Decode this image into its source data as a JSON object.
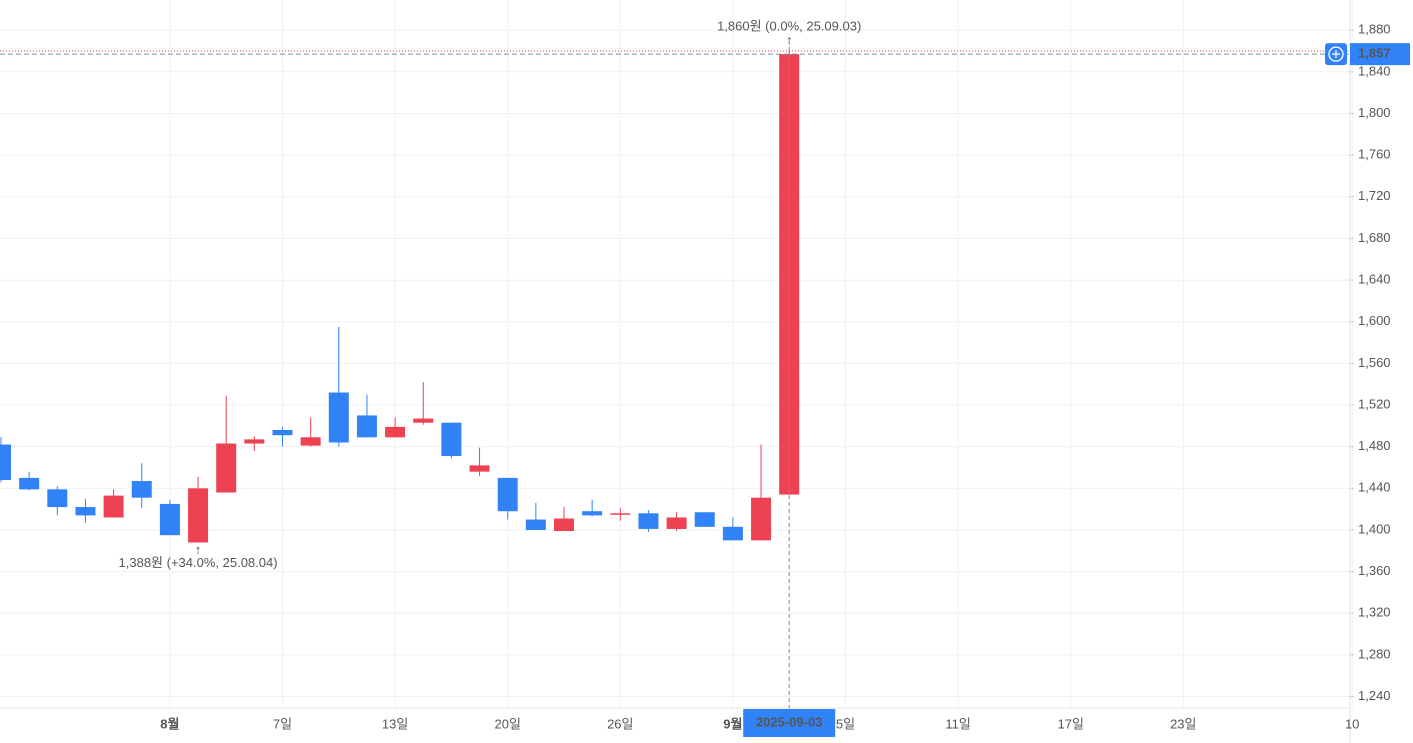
{
  "chart_data": {
    "type": "candlestick",
    "categories": [
      null,
      null,
      null,
      null,
      null,
      null,
      "8월",
      null,
      null,
      null,
      "7일",
      null,
      null,
      null,
      "13일",
      null,
      null,
      null,
      "20일",
      null,
      null,
      null,
      "26일",
      null,
      null,
      null,
      "9월",
      null,
      null,
      null,
      "5일",
      null,
      null,
      null,
      "11일",
      null,
      null,
      null,
      "17일",
      null,
      null,
      null,
      "23일",
      null,
      null,
      null,
      null,
      null,
      "10"
    ],
    "open": [
      1482,
      1450,
      1439,
      1422,
      1412,
      1447,
      1425,
      1388,
      1436,
      1483,
      1496,
      1481,
      1532,
      1510,
      1489,
      1503,
      1503,
      1456,
      1450,
      1410,
      1399,
      1418,
      1416,
      1416,
      1401,
      1417,
      1403,
      1390,
      1434,
      null,
      null,
      null,
      null,
      null,
      null,
      null,
      null,
      null,
      null,
      null,
      null,
      null,
      null,
      null,
      null,
      null,
      null,
      null,
      null
    ],
    "high": [
      1489,
      1456,
      1442,
      1430,
      1439,
      1464,
      1429,
      1451,
      1529,
      1490,
      1499,
      1508,
      1595,
      1530,
      1508,
      1542,
      1503,
      1479,
      1450,
      1426,
      1422,
      1429,
      1421,
      1419,
      1417,
      1417,
      1412,
      1482,
      1860,
      null,
      null,
      null,
      null,
      null,
      null,
      null,
      null,
      null,
      null,
      null,
      null,
      null,
      null,
      null,
      null,
      null,
      null,
      null,
      null
    ],
    "low": [
      1446,
      1438,
      1414,
      1407,
      1412,
      1421,
      1395,
      1388,
      1436,
      1476,
      1480,
      1480,
      1480,
      1489,
      1489,
      1501,
      1469,
      1452,
      1410,
      1400,
      1399,
      1413,
      1409,
      1398,
      1399,
      1403,
      1390,
      1390,
      1434,
      null,
      null,
      null,
      null,
      null,
      null,
      null,
      null,
      null,
      null,
      null,
      null,
      null,
      null,
      null,
      null,
      null,
      null,
      null,
      null
    ],
    "close": [
      1448,
      1439,
      1422,
      1414,
      1433,
      1431,
      1395,
      1440,
      1483,
      1487,
      1491,
      1489,
      1484,
      1489,
      1499,
      1507,
      1471,
      1462,
      1418,
      1400,
      1411,
      1414,
      1416,
      1401,
      1412,
      1403,
      1390,
      1431,
      1857,
      null,
      null,
      null,
      null,
      null,
      null,
      null,
      null,
      null,
      null,
      null,
      null,
      null,
      null,
      null,
      null,
      null,
      null,
      null,
      null
    ],
    "up_color": "#ee4152",
    "down_color": "#3182f6",
    "ylim": [
      1229,
      1909
    ],
    "yticks": [
      {
        "value": 1240,
        "label": "1,240"
      },
      {
        "value": 1280,
        "label": "1,280"
      },
      {
        "value": 1320,
        "label": "1,320"
      },
      {
        "value": 1360,
        "label": "1,360"
      },
      {
        "value": 1400,
        "label": "1,400"
      },
      {
        "value": 1440,
        "label": "1,440"
      },
      {
        "value": 1480,
        "label": "1,480"
      },
      {
        "value": 1520,
        "label": "1,520"
      },
      {
        "value": 1560,
        "label": "1,560"
      },
      {
        "value": 1600,
        "label": "1,600"
      },
      {
        "value": 1640,
        "label": "1,640"
      },
      {
        "value": 1680,
        "label": "1,680"
      },
      {
        "value": 1720,
        "label": "1,720"
      },
      {
        "value": 1760,
        "label": "1,760"
      },
      {
        "value": 1800,
        "label": "1,800"
      },
      {
        "value": 1840,
        "label": "1,840"
      },
      {
        "value": 1880,
        "label": "1,880"
      }
    ],
    "grid": true,
    "last_price": {
      "value": 1857,
      "label": "1,857"
    },
    "high_annotation": "1,860원 (0.0%, 25.09.03)",
    "low_annotation": "1,388원 (+34.0%, 25.08.04)",
    "crosshair_label": "2025-09-03"
  }
}
